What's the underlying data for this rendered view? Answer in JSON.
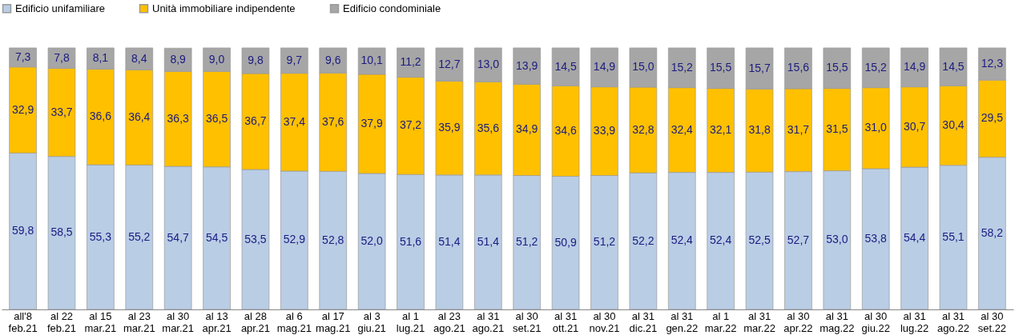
{
  "chart_data": {
    "type": "bar",
    "stacked": true,
    "legend": "top",
    "categories": [
      "all'8 feb.21",
      "al 22 feb.21",
      "al 15 mar.21",
      "al 23 mar.21",
      "al 30 mar.21",
      "al 13 apr.21",
      "al 28 apr.21",
      "al 6 mag.21",
      "al 17 mag.21",
      "al 3 giu.21",
      "al 1 lug.21",
      "al 23 ago.21",
      "al 31 ago.21",
      "al 30 set.21",
      "al 31 ott.21",
      "al 30 nov.21",
      "al 31 dic.21",
      "al 31 gen.22",
      "al 1 mar.22",
      "al 31 mar.22",
      "al 30 apr.22",
      "al 31 mag.22",
      "al 30 giu.22",
      "al 31 lug.22",
      "al 31 ago.22",
      "al 30 set.22"
    ],
    "series": [
      {
        "name": "Edificio unifamiliare",
        "color": "#b9cde5",
        "values": [
          59.8,
          58.5,
          55.3,
          55.2,
          54.7,
          54.5,
          53.5,
          52.9,
          52.8,
          52.0,
          51.6,
          51.4,
          51.4,
          51.2,
          50.9,
          51.2,
          52.2,
          52.4,
          52.4,
          52.5,
          52.7,
          53.0,
          53.8,
          54.4,
          55.1,
          58.2
        ],
        "value_labels": [
          "59,8",
          "58,5",
          "55,3",
          "55,2",
          "54,7",
          "54,5",
          "53,5",
          "52,9",
          "52,8",
          "52,0",
          "51,6",
          "51,4",
          "51,4",
          "51,2",
          "50,9",
          "51,2",
          "52,2",
          "52,4",
          "52,4",
          "52,5",
          "52,7",
          "53,0",
          "53,8",
          "54,4",
          "55,1",
          "58,2"
        ]
      },
      {
        "name": "Unità immobiliare indipendente",
        "color": "#ffc000",
        "values": [
          32.9,
          33.7,
          36.6,
          36.4,
          36.3,
          36.5,
          36.7,
          37.4,
          37.6,
          37.9,
          37.2,
          35.9,
          35.6,
          34.9,
          34.6,
          33.9,
          32.8,
          32.4,
          32.1,
          31.8,
          31.7,
          31.5,
          31.0,
          30.7,
          30.4,
          29.5
        ],
        "value_labels": [
          "32,9",
          "33,7",
          "36,6",
          "36,4",
          "36,3",
          "36,5",
          "36,7",
          "37,4",
          "37,6",
          "37,9",
          "37,2",
          "35,9",
          "35,6",
          "34,9",
          "34,6",
          "33,9",
          "32,8",
          "32,4",
          "32,1",
          "31,8",
          "31,7",
          "31,5",
          "31,0",
          "30,7",
          "30,4",
          "29,5"
        ]
      },
      {
        "name": "Edificio condominiale",
        "color": "#a6a6a6",
        "values": [
          7.3,
          7.8,
          8.1,
          8.4,
          8.9,
          9.0,
          9.8,
          9.7,
          9.6,
          10.1,
          11.2,
          12.7,
          13.0,
          13.9,
          14.5,
          14.9,
          15.0,
          15.2,
          15.5,
          15.7,
          15.6,
          15.5,
          15.2,
          14.9,
          14.5,
          12.3
        ],
        "value_labels": [
          "7,3",
          "7,8",
          "8,1",
          "8,4",
          "8,9",
          "9,0",
          "9,8",
          "9,7",
          "9,6",
          "10,1",
          "11,2",
          "12,7",
          "13,0",
          "13,9",
          "14,5",
          "14,9",
          "15,0",
          "15,2",
          "15,5",
          "15,7",
          "15,6",
          "15,5",
          "15,2",
          "14,9",
          "14,5",
          "12,3"
        ]
      }
    ]
  }
}
